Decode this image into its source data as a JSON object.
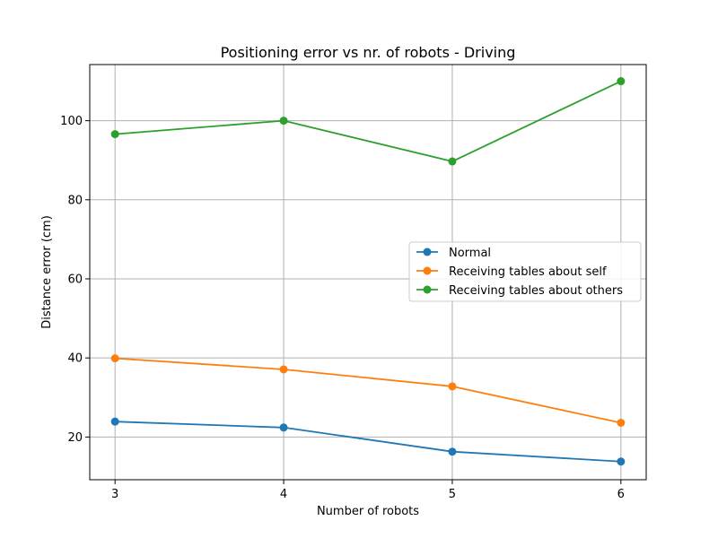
{
  "chart_data": {
    "type": "line",
    "title": "Positioning error vs nr. of robots - Driving",
    "xlabel": "Number of robots",
    "ylabel": "Distance error (cm)",
    "x": [
      3,
      4,
      5,
      6
    ],
    "xticks": [
      "3",
      "4",
      "5",
      "6"
    ],
    "yticks": [
      "20",
      "40",
      "60",
      "80",
      "100"
    ],
    "xlim": [
      2.85,
      6.15
    ],
    "ylim": [
      9.2,
      114.2
    ],
    "grid": true,
    "legend_position": "center-right",
    "series": [
      {
        "name": "Normal",
        "color": "#1f77b4",
        "values": [
          23.9,
          22.4,
          16.3,
          13.8
        ]
      },
      {
        "name": "Receiving tables about self",
        "color": "#ff7f0e",
        "values": [
          39.9,
          37.1,
          32.8,
          23.6
        ]
      },
      {
        "name": "Receiving tables about others",
        "color": "#2ca02c",
        "values": [
          96.6,
          100.0,
          89.7,
          110.0
        ]
      }
    ]
  }
}
